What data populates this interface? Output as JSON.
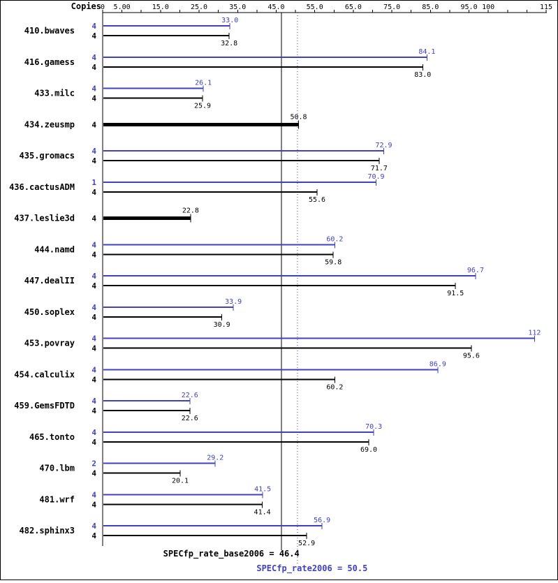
{
  "header": {
    "copies_label": "Copies"
  },
  "chart_data": {
    "type": "bar",
    "orientation": "horizontal",
    "colors": {
      "peak": "#4040c0",
      "base": "#000000"
    },
    "axis": {
      "min": 0,
      "max": 115,
      "minor_tick_step": 5,
      "tick_labels": [
        {
          "value": 0,
          "text": "0"
        },
        {
          "value": 5,
          "text": "5.00"
        },
        {
          "value": 15,
          "text": "15.0"
        },
        {
          "value": 25,
          "text": "25.0"
        },
        {
          "value": 35,
          "text": "35.0"
        },
        {
          "value": 45,
          "text": "45.0"
        },
        {
          "value": 55,
          "text": "55.0"
        },
        {
          "value": 65,
          "text": "65.0"
        },
        {
          "value": 75,
          "text": "75.0"
        },
        {
          "value": 85,
          "text": "85.0"
        },
        {
          "value": 95,
          "text": "95.0"
        },
        {
          "value": 100,
          "text": "100"
        },
        {
          "value": 115,
          "text": "115"
        }
      ]
    },
    "reference_lines": [
      {
        "id": "base",
        "value": 46.4,
        "style": "solid",
        "color": "#000000",
        "label": "SPECfp_rate_base2006 = 46.4"
      },
      {
        "id": "peak",
        "value": 50.5,
        "style": "dotted",
        "color": "#4040c0",
        "label": "SPECfp_rate2006 = 50.5"
      }
    ],
    "benchmarks": [
      {
        "name": "410.bwaves",
        "peak_copies": "4",
        "peak": 33.0,
        "peak_label": "33.0",
        "base_copies": "4",
        "base": 32.8,
        "base_label": "32.8"
      },
      {
        "name": "416.gamess",
        "peak_copies": "4",
        "peak": 84.1,
        "peak_label": "84.1",
        "base_copies": "4",
        "base": 83.0,
        "base_label": "83.0"
      },
      {
        "name": "433.milc",
        "peak_copies": "4",
        "peak": 26.1,
        "peak_label": "26.1",
        "base_copies": "4",
        "base": 25.9,
        "base_label": "25.9"
      },
      {
        "name": "434.zeusmp",
        "base_only": true,
        "base_copies": "4",
        "base": 50.8,
        "base_label": "50.8"
      },
      {
        "name": "435.gromacs",
        "peak_copies": "4",
        "peak": 72.9,
        "peak_label": "72.9",
        "base_copies": "4",
        "base": 71.7,
        "base_label": "71.7"
      },
      {
        "name": "436.cactusADM",
        "peak_copies": "1",
        "peak": 70.9,
        "peak_label": "70.9",
        "base_copies": "4",
        "base": 55.6,
        "base_label": "55.6"
      },
      {
        "name": "437.leslie3d",
        "base_only": true,
        "base_copies": "4",
        "base": 22.8,
        "base_label": "22.8"
      },
      {
        "name": "444.namd",
        "peak_copies": "4",
        "peak": 60.2,
        "peak_label": "60.2",
        "base_copies": "4",
        "base": 59.8,
        "base_label": "59.8"
      },
      {
        "name": "447.dealII",
        "peak_copies": "4",
        "peak": 96.7,
        "peak_label": "96.7",
        "base_copies": "4",
        "base": 91.5,
        "base_label": "91.5"
      },
      {
        "name": "450.soplex",
        "peak_copies": "4",
        "peak": 33.9,
        "peak_label": "33.9",
        "base_copies": "4",
        "base": 30.9,
        "base_label": "30.9"
      },
      {
        "name": "453.povray",
        "peak_copies": "4",
        "peak": 112,
        "peak_label": "112",
        "base_copies": "4",
        "base": 95.6,
        "base_label": "95.6"
      },
      {
        "name": "454.calculix",
        "peak_copies": "4",
        "peak": 86.9,
        "peak_label": "86.9",
        "base_copies": "4",
        "base": 60.2,
        "base_label": "60.2"
      },
      {
        "name": "459.GemsFDTD",
        "peak_copies": "4",
        "peak": 22.6,
        "peak_label": "22.6",
        "base_copies": "4",
        "base": 22.6,
        "base_label": "22.6"
      },
      {
        "name": "465.tonto",
        "peak_copies": "4",
        "peak": 70.3,
        "peak_label": "70.3",
        "base_copies": "4",
        "base": 69.0,
        "base_label": "69.0"
      },
      {
        "name": "470.lbm",
        "peak_copies": "2",
        "peak": 29.2,
        "peak_label": "29.2",
        "base_copies": "4",
        "base": 20.1,
        "base_label": "20.1"
      },
      {
        "name": "481.wrf",
        "peak_copies": "4",
        "peak": 41.5,
        "peak_label": "41.5",
        "base_copies": "4",
        "base": 41.4,
        "base_label": "41.4"
      },
      {
        "name": "482.sphinx3",
        "peak_copies": "4",
        "peak": 56.9,
        "peak_label": "56.9",
        "base_copies": "4",
        "base": 52.9,
        "base_label": "52.9"
      }
    ]
  }
}
